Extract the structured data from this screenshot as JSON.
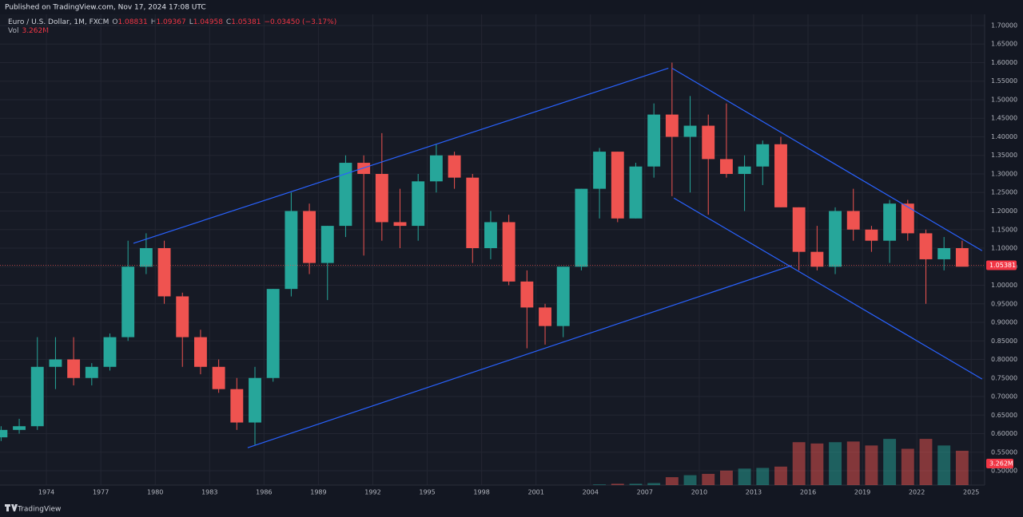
{
  "published": "Published on TradingView.com, Nov 17, 2024 17:08 UTC",
  "brand": "TradingView",
  "chart_data": {
    "type": "candlestick",
    "legend": {
      "symbol": "Euro / U.S. Dollar, 1M, FXCM",
      "o_label": "O",
      "o": "1.08831",
      "h_label": "H",
      "h": "1.09367",
      "l_label": "L",
      "l": "1.04958",
      "c_label": "C",
      "c": "1.05381",
      "change": "−0.03450 (−3.17%)",
      "vol_label": "Vol",
      "vol": "3.262M"
    },
    "x": [
      1971,
      1972,
      1973,
      1974,
      1975,
      1976,
      1977,
      1978,
      1979,
      1980,
      1981,
      1982,
      1983,
      1984,
      1985,
      1986,
      1987,
      1988,
      1989,
      1990,
      1991,
      1992,
      1993,
      1994,
      1995,
      1996,
      1997,
      1998,
      1999,
      2000,
      2001,
      2002,
      2003,
      2004,
      2005,
      2006,
      2007,
      2008,
      2009,
      2010,
      2011,
      2012,
      2013,
      2014,
      2015,
      2016,
      2017,
      2018,
      2019,
      2020,
      2021,
      2022,
      2023,
      2024
    ],
    "open": [
      0.59,
      0.61,
      0.62,
      0.78,
      0.8,
      0.75,
      0.78,
      0.86,
      1.05,
      1.1,
      0.97,
      0.86,
      0.78,
      0.72,
      0.63,
      0.75,
      0.99,
      1.2,
      1.06,
      1.16,
      1.33,
      1.3,
      1.17,
      1.16,
      1.28,
      1.35,
      1.29,
      1.1,
      1.17,
      1.01,
      0.94,
      0.89,
      1.05,
      1.26,
      1.36,
      1.18,
      1.32,
      1.46,
      1.4,
      1.43,
      1.34,
      1.3,
      1.32,
      1.38,
      1.21,
      1.09,
      1.05,
      1.2,
      1.15,
      1.12,
      1.22,
      1.14,
      1.07,
      1.1
    ],
    "high": [
      0.62,
      0.64,
      0.86,
      0.86,
      0.86,
      0.79,
      0.87,
      1.12,
      1.14,
      1.12,
      0.98,
      0.88,
      0.8,
      0.75,
      0.78,
      0.99,
      1.25,
      1.22,
      1.16,
      1.35,
      1.35,
      1.41,
      1.26,
      1.3,
      1.38,
      1.36,
      1.3,
      1.2,
      1.19,
      1.04,
      0.95,
      1.05,
      1.26,
      1.37,
      1.36,
      1.33,
      1.49,
      1.6,
      1.51,
      1.46,
      1.49,
      1.35,
      1.39,
      1.4,
      1.21,
      1.16,
      1.21,
      1.26,
      1.16,
      1.23,
      1.23,
      1.15,
      1.13,
      1.12
    ],
    "low": [
      0.58,
      0.6,
      0.61,
      0.72,
      0.73,
      0.73,
      0.77,
      0.85,
      1.03,
      0.95,
      0.78,
      0.76,
      0.71,
      0.61,
      0.57,
      0.74,
      0.97,
      1.03,
      0.96,
      1.13,
      1.08,
      1.12,
      1.1,
      1.12,
      1.25,
      1.26,
      1.06,
      1.07,
      1.0,
      0.83,
      0.84,
      0.86,
      1.04,
      1.18,
      1.17,
      1.18,
      1.29,
      1.24,
      1.25,
      1.19,
      1.29,
      1.2,
      1.27,
      1.21,
      1.04,
      1.04,
      1.03,
      1.12,
      1.09,
      1.06,
      1.12,
      0.95,
      1.04,
      1.06
    ],
    "close": [
      0.61,
      0.62,
      0.78,
      0.8,
      0.75,
      0.78,
      0.86,
      1.05,
      1.1,
      0.97,
      0.86,
      0.78,
      0.72,
      0.63,
      0.75,
      0.99,
      1.2,
      1.06,
      1.16,
      1.33,
      1.3,
      1.17,
      1.16,
      1.28,
      1.35,
      1.29,
      1.1,
      1.17,
      1.01,
      0.94,
      0.89,
      1.05,
      1.26,
      1.36,
      1.18,
      1.32,
      1.46,
      1.4,
      1.43,
      1.34,
      1.3,
      1.32,
      1.38,
      1.21,
      1.09,
      1.05,
      1.2,
      1.15,
      1.12,
      1.22,
      1.14,
      1.07,
      1.1,
      1.05
    ],
    "volume": [
      null,
      null,
      null,
      null,
      null,
      null,
      null,
      null,
      null,
      null,
      null,
      null,
      null,
      null,
      null,
      null,
      null,
      null,
      null,
      null,
      null,
      null,
      null,
      null,
      null,
      null,
      null,
      null,
      null,
      null,
      null,
      null,
      null,
      0.1,
      0.2,
      0.2,
      0.3,
      1.2,
      1.5,
      1.7,
      2.2,
      2.5,
      2.6,
      2.8,
      6.5,
      6.3,
      6.5,
      6.6,
      6.0,
      7.0,
      5.5,
      7.0,
      6.0,
      5.2
    ],
    "xlim": [
      1971.44,
      2025.74
    ],
    "xticks": [
      1974,
      1977,
      1980,
      1983,
      1986,
      1989,
      1992,
      1995,
      1998,
      2001,
      2004,
      2007,
      2010,
      2013,
      2016,
      2019,
      2022,
      2025
    ],
    "ylim": [
      0.4613,
      1.7301
    ],
    "yticks": [
      {
        "value": 0.5,
        "label": "0.50000"
      },
      {
        "value": 0.55,
        "label": "0.55000"
      },
      {
        "value": 0.6,
        "label": "0.60000"
      },
      {
        "value": 0.65,
        "label": "0.65000"
      },
      {
        "value": 0.7,
        "label": "0.70000"
      },
      {
        "value": 0.75,
        "label": "0.75000"
      },
      {
        "value": 0.8,
        "label": "0.80000"
      },
      {
        "value": 0.85,
        "label": "0.85000"
      },
      {
        "value": 0.9,
        "label": "0.90000"
      },
      {
        "value": 0.95,
        "label": "0.95000"
      },
      {
        "value": 1.0,
        "label": "1.00000"
      },
      {
        "value": 1.05,
        "label": "1.05000"
      },
      {
        "value": 1.1,
        "label": "1.10000"
      },
      {
        "value": 1.15,
        "label": "1.15000"
      },
      {
        "value": 1.2,
        "label": "1.20000"
      },
      {
        "value": 1.25,
        "label": "1.25000"
      },
      {
        "value": 1.3,
        "label": "1.30000"
      },
      {
        "value": 1.35,
        "label": "1.35000"
      },
      {
        "value": 1.4,
        "label": "1.40000"
      },
      {
        "value": 1.45,
        "label": "1.45000"
      },
      {
        "value": 1.5,
        "label": "1.50000"
      },
      {
        "value": 1.55,
        "label": "1.55000"
      },
      {
        "value": 1.6,
        "label": "1.60000"
      },
      {
        "value": 1.65,
        "label": "1.65000"
      },
      {
        "value": 1.7,
        "label": "1.70000"
      }
    ],
    "y2lim": [
      0,
      71.3
    ],
    "last_price": {
      "value": 1.05381,
      "label": "1.05381"
    },
    "last_volume": {
      "value": 3.262,
      "label": "3.262M"
    },
    "trendlines": [
      {
        "x": [
          1978.8,
          2008.3
        ],
        "y": [
          1.113,
          1.585
        ]
      },
      {
        "x": [
          1985.1,
          2015.1
        ],
        "y": [
          0.562,
          1.053
        ]
      },
      {
        "x": [
          2008.5,
          2025.6
        ],
        "y": [
          1.585,
          1.093
        ]
      },
      {
        "x": [
          2008.6,
          2025.6
        ],
        "y": [
          1.235,
          0.747
        ]
      }
    ],
    "up_color": "#26a69a",
    "down_color": "#ef5350",
    "line_color": "#2962ff",
    "grid": true
  }
}
